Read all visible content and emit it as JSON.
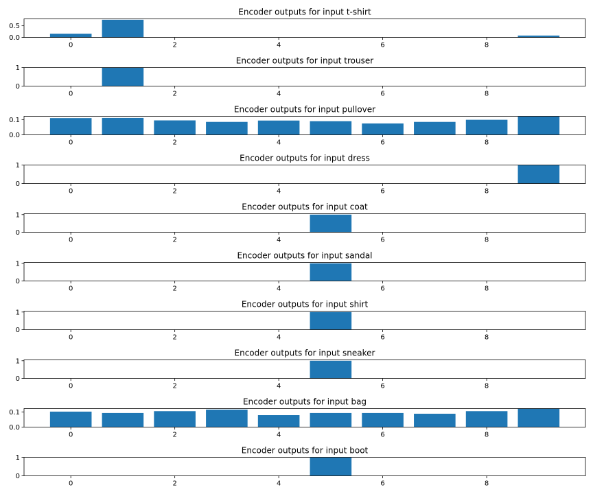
{
  "figure": {
    "background": "#ffffff",
    "bar_color": "#1f77b4"
  },
  "chart_data": [
    {
      "type": "bar",
      "title": "Encoder outputs for input t-shirt",
      "categories": [
        0,
        1,
        2,
        3,
        4,
        5,
        6,
        7,
        8,
        9
      ],
      "values": [
        0.16,
        0.76,
        0.0,
        0.0,
        0.0,
        0.0,
        0.0,
        0.0,
        0.0,
        0.08
      ],
      "xticks": [
        "0",
        "2",
        "4",
        "6",
        "8"
      ],
      "yticks": [
        "0.0",
        "0.5"
      ],
      "ylim": [
        0,
        0.8
      ],
      "xlabel": "",
      "ylabel": ""
    },
    {
      "type": "bar",
      "title": "Encoder outputs for input trouser",
      "categories": [
        0,
        1,
        2,
        3,
        4,
        5,
        6,
        7,
        8,
        9
      ],
      "values": [
        0.0,
        1.0,
        0.0,
        0.0,
        0.0,
        0.0,
        0.0,
        0.0,
        0.0,
        0.0
      ],
      "xticks": [
        "0",
        "2",
        "4",
        "6",
        "8"
      ],
      "yticks": [
        "0",
        "1"
      ],
      "ylim": [
        0,
        1.0
      ],
      "xlabel": "",
      "ylabel": ""
    },
    {
      "type": "bar",
      "title": "Encoder outputs for input pullover",
      "categories": [
        0,
        1,
        2,
        3,
        4,
        5,
        6,
        7,
        8,
        9
      ],
      "values": [
        0.11,
        0.111,
        0.095,
        0.085,
        0.094,
        0.09,
        0.075,
        0.085,
        0.099,
        0.122
      ],
      "xticks": [
        "0",
        "2",
        "4",
        "6",
        "8"
      ],
      "yticks": [
        "0.0",
        "0.1"
      ],
      "ylim": [
        0,
        0.122
      ],
      "xlabel": "",
      "ylabel": ""
    },
    {
      "type": "bar",
      "title": "Encoder outputs for input dress",
      "categories": [
        0,
        1,
        2,
        3,
        4,
        5,
        6,
        7,
        8,
        9
      ],
      "values": [
        0.0,
        0.0,
        0.0,
        0.0,
        0.0,
        0.0,
        0.0,
        0.0,
        0.0,
        1.0
      ],
      "xticks": [
        "0",
        "2",
        "4",
        "6",
        "8"
      ],
      "yticks": [
        "0",
        "1"
      ],
      "ylim": [
        0,
        1.0
      ],
      "xlabel": "",
      "ylabel": ""
    },
    {
      "type": "bar",
      "title": "Encoder outputs for input coat",
      "categories": [
        0,
        1,
        2,
        3,
        4,
        5,
        6,
        7,
        8,
        9
      ],
      "values": [
        0.0,
        0.0,
        0.0,
        0.0,
        0.0,
        1.0,
        0.0,
        0.0,
        0.0,
        0.0
      ],
      "xticks": [
        "0",
        "2",
        "4",
        "6",
        "8"
      ],
      "yticks": [
        "0",
        "1"
      ],
      "ylim": [
        0,
        1.05
      ],
      "xlabel": "",
      "ylabel": ""
    },
    {
      "type": "bar",
      "title": "Encoder outputs for input sandal",
      "categories": [
        0,
        1,
        2,
        3,
        4,
        5,
        6,
        7,
        8,
        9
      ],
      "values": [
        0.0,
        0.0,
        0.0,
        0.0,
        0.0,
        1.0,
        0.0,
        0.0,
        0.0,
        0.0
      ],
      "xticks": [
        "0",
        "2",
        "4",
        "6",
        "8"
      ],
      "yticks": [
        "0",
        "1"
      ],
      "ylim": [
        0,
        1.05
      ],
      "xlabel": "",
      "ylabel": ""
    },
    {
      "type": "bar",
      "title": "Encoder outputs for input shirt",
      "categories": [
        0,
        1,
        2,
        3,
        4,
        5,
        6,
        7,
        8,
        9
      ],
      "values": [
        0.0,
        0.0,
        0.0,
        0.0,
        0.0,
        1.0,
        0.0,
        0.0,
        0.0,
        0.0
      ],
      "xticks": [
        "0",
        "2",
        "4",
        "6",
        "8"
      ],
      "yticks": [
        "0",
        "1"
      ],
      "ylim": [
        0,
        1.05
      ],
      "xlabel": "",
      "ylabel": ""
    },
    {
      "type": "bar",
      "title": "Encoder outputs for input sneaker",
      "categories": [
        0,
        1,
        2,
        3,
        4,
        5,
        6,
        7,
        8,
        9
      ],
      "values": [
        0.0,
        0.0,
        0.0,
        0.0,
        0.0,
        1.0,
        0.0,
        0.0,
        0.0,
        0.0
      ],
      "xticks": [
        "0",
        "2",
        "4",
        "6",
        "8"
      ],
      "yticks": [
        "0",
        "1"
      ],
      "ylim": [
        0,
        1.05
      ],
      "xlabel": "",
      "ylabel": ""
    },
    {
      "type": "bar",
      "title": "Encoder outputs for input bag",
      "categories": [
        0,
        1,
        2,
        3,
        4,
        5,
        6,
        7,
        8,
        9
      ],
      "values": [
        0.102,
        0.093,
        0.105,
        0.115,
        0.079,
        0.093,
        0.093,
        0.088,
        0.105,
        0.122
      ],
      "xticks": [
        "0",
        "2",
        "4",
        "6",
        "8"
      ],
      "yticks": [
        "0.0",
        "0.1"
      ],
      "ylim": [
        0,
        0.122
      ],
      "xlabel": "",
      "ylabel": ""
    },
    {
      "type": "bar",
      "title": "Encoder outputs for input boot",
      "categories": [
        0,
        1,
        2,
        3,
        4,
        5,
        6,
        7,
        8,
        9
      ],
      "values": [
        0.0,
        0.0,
        0.0,
        0.0,
        0.0,
        1.0,
        0.0,
        0.0,
        0.0,
        0.0
      ],
      "xticks": [
        "0",
        "2",
        "4",
        "6",
        "8"
      ],
      "yticks": [
        "0",
        "1"
      ],
      "ylim": [
        0,
        1.0
      ],
      "xlabel": "",
      "ylabel": ""
    }
  ]
}
